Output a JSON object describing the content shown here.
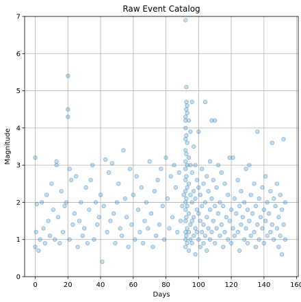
{
  "chart_data": {
    "type": "scatter",
    "title": "Raw Event Catalog",
    "xlabel": "Days",
    "ylabel": "Magnitude",
    "xlim": [
      -6.5,
      161
    ],
    "ylim": [
      0,
      7
    ],
    "xticks": [
      0,
      20,
      40,
      60,
      80,
      100,
      120,
      140,
      160
    ],
    "yticks": [
      0,
      1,
      2,
      3,
      4,
      5,
      6,
      7
    ],
    "grid": true,
    "legend": "none",
    "series": [
      {
        "color": "#1f77b4",
        "alpha": 0.25,
        "marker": "circle-hollow-filled",
        "points": [
          [
            0,
            3.2
          ],
          [
            0,
            0.8
          ],
          [
            0.5,
            1.2
          ],
          [
            1,
            1.95
          ],
          [
            2,
            0.7
          ],
          [
            3,
            1.0
          ],
          [
            4,
            2.0
          ],
          [
            5,
            1.3
          ],
          [
            6,
            0.9
          ],
          [
            7,
            2.2
          ],
          [
            8,
            1.5
          ],
          [
            9,
            1.1
          ],
          [
            10,
            2.5
          ],
          [
            11,
            1.8
          ],
          [
            12,
            1.0
          ],
          [
            13,
            3.1
          ],
          [
            13,
            3.0
          ],
          [
            14,
            1.6
          ],
          [
            15,
            0.9
          ],
          [
            16,
            2.3
          ],
          [
            17,
            1.2
          ],
          [
            18,
            1.9
          ],
          [
            19,
            2.0
          ],
          [
            20,
            5.4
          ],
          [
            20,
            4.5
          ],
          [
            20,
            4.3
          ],
          [
            21,
            2.9
          ],
          [
            21,
            1.0
          ],
          [
            22,
            2.6
          ],
          [
            23,
            1.4
          ],
          [
            24,
            1.7
          ],
          [
            25,
            2.7
          ],
          [
            26,
            0.8
          ],
          [
            27,
            1.5
          ],
          [
            28,
            2.0
          ],
          [
            29,
            1.1
          ],
          [
            30,
            1.3
          ],
          [
            31,
            2.4
          ],
          [
            32,
            0.9
          ],
          [
            33,
            1.8
          ],
          [
            34,
            2.6
          ],
          [
            35,
            3.0
          ],
          [
            36,
            1.0
          ],
          [
            37,
            2.0
          ],
          [
            38,
            1.4
          ],
          [
            39,
            1.6
          ],
          [
            40,
            2.2
          ],
          [
            41,
            0.4
          ],
          [
            42,
            1.9
          ],
          [
            43,
            3.15
          ],
          [
            44,
            1.2
          ],
          [
            45,
            2.8
          ],
          [
            46,
            1.5
          ],
          [
            47,
            3.05
          ],
          [
            48,
            1.7
          ],
          [
            49,
            0.9
          ],
          [
            50,
            2.0
          ],
          [
            51,
            2.5
          ],
          [
            52,
            1.3
          ],
          [
            53,
            1.1
          ],
          [
            54,
            3.4
          ],
          [
            55,
            2.1
          ],
          [
            56,
            1.6
          ],
          [
            57,
            0.8
          ],
          [
            58,
            2.9
          ],
          [
            59,
            1.4
          ],
          [
            60,
            2.2
          ],
          [
            61,
            1.0
          ],
          [
            62,
            2.7
          ],
          [
            63,
            1.8
          ],
          [
            64,
            1.2
          ],
          [
            65,
            2.4
          ],
          [
            66,
            0.9
          ],
          [
            67,
            1.5
          ],
          [
            68,
            2.0
          ],
          [
            69,
            1.3
          ],
          [
            70,
            3.1
          ],
          [
            71,
            1.7
          ],
          [
            72,
            0.8
          ],
          [
            73,
            2.3
          ],
          [
            74,
            1.1
          ],
          [
            75,
            2.6
          ],
          [
            76,
            1.4
          ],
          [
            77,
            2.9
          ],
          [
            78,
            1.9
          ],
          [
            79,
            1.0
          ],
          [
            80,
            3.2
          ],
          [
            81,
            2.1
          ],
          [
            82,
            1.3
          ],
          [
            83,
            2.7
          ],
          [
            84,
            1.6
          ],
          [
            85,
            3.0
          ],
          [
            86,
            2.4
          ],
          [
            87,
            1.2
          ],
          [
            88,
            2.8
          ],
          [
            89,
            1.5
          ],
          [
            90,
            1.9
          ],
          [
            91,
            2.2
          ],
          [
            92,
            6.9
          ],
          [
            92,
            4.3
          ],
          [
            92,
            4.2
          ],
          [
            92,
            4.0
          ],
          [
            92,
            3.7
          ],
          [
            92,
            3.4
          ],
          [
            92,
            3.1
          ],
          [
            92,
            2.9
          ],
          [
            92,
            2.6
          ],
          [
            92,
            2.3
          ],
          [
            92,
            2.0
          ],
          [
            92,
            1.8
          ],
          [
            92,
            1.5
          ],
          [
            92,
            1.2
          ],
          [
            92,
            1.0
          ],
          [
            92,
            0.8
          ],
          [
            92.5,
            5.1
          ],
          [
            92.5,
            4.7
          ],
          [
            92.5,
            4.5
          ],
          [
            92.5,
            3.8
          ],
          [
            92.5,
            3.3
          ],
          [
            92.5,
            2.7
          ],
          [
            92.5,
            2.1
          ],
          [
            92.5,
            1.6
          ],
          [
            92.5,
            1.1
          ],
          [
            93,
            4.6
          ],
          [
            93,
            4.4
          ],
          [
            93,
            3.6
          ],
          [
            93,
            3.0
          ],
          [
            93,
            2.4
          ],
          [
            93,
            1.9
          ],
          [
            93,
            1.3
          ],
          [
            93,
            0.9
          ],
          [
            94,
            4.2
          ],
          [
            94,
            3.2
          ],
          [
            94,
            2.5
          ],
          [
            94,
            1.7
          ],
          [
            94,
            1.2
          ],
          [
            94,
            0.7
          ],
          [
            95,
            3.9
          ],
          [
            95,
            3.0
          ],
          [
            95,
            2.2
          ],
          [
            95,
            1.4
          ],
          [
            95,
            1.0
          ],
          [
            96,
            4.7
          ],
          [
            96,
            2.8
          ],
          [
            96,
            2.0
          ],
          [
            96,
            1.5
          ],
          [
            96,
            0.9
          ],
          [
            97,
            3.5
          ],
          [
            97,
            2.3
          ],
          [
            97,
            1.6
          ],
          [
            97,
            1.1
          ],
          [
            98,
            3.0
          ],
          [
            98,
            2.1
          ],
          [
            98,
            1.3
          ],
          [
            98,
            0.6
          ],
          [
            99,
            2.6
          ],
          [
            99,
            1.8
          ],
          [
            99,
            1.2
          ],
          [
            100,
            3.9
          ],
          [
            100,
            2.4
          ],
          [
            100,
            1.7
          ],
          [
            100,
            1.0
          ],
          [
            101,
            2.2
          ],
          [
            101,
            1.5
          ],
          [
            101,
            0.8
          ],
          [
            102,
            2.9
          ],
          [
            102,
            1.9
          ],
          [
            102,
            1.2
          ],
          [
            103,
            2.5
          ],
          [
            103,
            1.4
          ],
          [
            103,
            0.9
          ],
          [
            104,
            4.7
          ],
          [
            104,
            2.0
          ],
          [
            104,
            1.1
          ],
          [
            105,
            2.7
          ],
          [
            105,
            1.6
          ],
          [
            105,
            0.7
          ],
          [
            106,
            2.3
          ],
          [
            106,
            1.3
          ],
          [
            107,
            3.1
          ],
          [
            107,
            1.8
          ],
          [
            107,
            1.0
          ],
          [
            108,
            4.2
          ],
          [
            108,
            2.1
          ],
          [
            108,
            1.2
          ],
          [
            109,
            2.6
          ],
          [
            109,
            1.5
          ],
          [
            110,
            4.2
          ],
          [
            110,
            1.9
          ],
          [
            110,
            0.9
          ],
          [
            111,
            2.4
          ],
          [
            111,
            1.3
          ],
          [
            112,
            3.0
          ],
          [
            112,
            1.7
          ],
          [
            113,
            2.0
          ],
          [
            113,
            1.1
          ],
          [
            114,
            2.8
          ],
          [
            114,
            1.4
          ],
          [
            115,
            1.9
          ],
          [
            115,
            0.8
          ],
          [
            116,
            2.5
          ],
          [
            116,
            1.2
          ],
          [
            117,
            1.6
          ],
          [
            118,
            2.2
          ],
          [
            118,
            1.0
          ],
          [
            119,
            3.2
          ],
          [
            119,
            1.5
          ],
          [
            120,
            1.8
          ],
          [
            120,
            0.9
          ],
          [
            121,
            3.2
          ],
          [
            121,
            1.3
          ],
          [
            122,
            2.1
          ],
          [
            122,
            1.1
          ],
          [
            123,
            1.7
          ],
          [
            124,
            2.6
          ],
          [
            124,
            1.2
          ],
          [
            125,
            1.9
          ],
          [
            125,
            0.7
          ],
          [
            126,
            2.3
          ],
          [
            126,
            1.4
          ],
          [
            127,
            1.6
          ],
          [
            128,
            2.0
          ],
          [
            128,
            1.0
          ],
          [
            129,
            2.9
          ],
          [
            129,
            1.3
          ],
          [
            130,
            1.8
          ],
          [
            130,
            0.9
          ],
          [
            131,
            3.0
          ],
          [
            131,
            1.5
          ],
          [
            132,
            2.2
          ],
          [
            132,
            1.1
          ],
          [
            133,
            1.7
          ],
          [
            134,
            2.5
          ],
          [
            134,
            1.2
          ],
          [
            135,
            1.9
          ],
          [
            135,
            0.8
          ],
          [
            136,
            3.9
          ],
          [
            136,
            1.4
          ],
          [
            137,
            2.1
          ],
          [
            137,
            1.0
          ],
          [
            138,
            1.6
          ],
          [
            139,
            2.4
          ],
          [
            139,
            1.3
          ],
          [
            140,
            1.8
          ],
          [
            140,
            0.9
          ],
          [
            141,
            2.7
          ],
          [
            141,
            1.5
          ],
          [
            142,
            2.0
          ],
          [
            142,
            1.1
          ],
          [
            143,
            1.7
          ],
          [
            144,
            2.3
          ],
          [
            144,
            1.2
          ],
          [
            145,
            3.6
          ],
          [
            145,
            1.4
          ],
          [
            146,
            2.1
          ],
          [
            146,
            1.0
          ],
          [
            147,
            1.9
          ],
          [
            148,
            2.5
          ],
          [
            148,
            1.3
          ],
          [
            149,
            1.6
          ],
          [
            149,
            0.8
          ],
          [
            150,
            2.2
          ],
          [
            150,
            1.1
          ],
          [
            151,
            1.8
          ],
          [
            151,
            0.6
          ],
          [
            152,
            3.7
          ],
          [
            152,
            1.4
          ],
          [
            153,
            1.0
          ],
          [
            153,
            2.0
          ]
        ]
      }
    ]
  }
}
